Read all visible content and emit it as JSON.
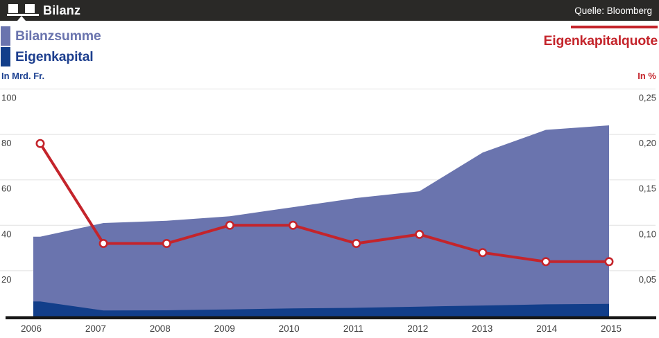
{
  "header": {
    "title": "Bilanz",
    "source": "Quelle: Bloomberg"
  },
  "legend": {
    "area_series": [
      {
        "label": "Bilanzsumme",
        "color": "#6a74ae"
      },
      {
        "label": "Eigenkapital",
        "color": "#123e8a"
      }
    ],
    "line_series": {
      "label": "Eigenkapitalquote",
      "color": "#c4242b"
    }
  },
  "axes": {
    "left_unit": "In Mrd. Fr.",
    "right_unit": "In %"
  },
  "colors": {
    "header_bg": "#2a2927",
    "grid": "#e0e0e0",
    "axis_line": "#161616",
    "tick_text": "#3f3f3f",
    "marker_fill": "#ffffff"
  },
  "chart_data": {
    "type": "area",
    "title": "Bilanz",
    "source": "Quelle: Bloomberg",
    "categories": [
      "2006",
      "2007",
      "2008",
      "2009",
      "2010",
      "2011",
      "2012",
      "2013",
      "2014",
      "2015"
    ],
    "series": [
      {
        "name": "Bilanzsumme",
        "type": "area",
        "axis": "left",
        "unit": "Mrd. Fr.",
        "color": "#6a74ae",
        "values": [
          35,
          41,
          42,
          44,
          48,
          52,
          55,
          72,
          82,
          84
        ]
      },
      {
        "name": "Eigenkapital",
        "type": "area",
        "axis": "left",
        "unit": "Mrd. Fr.",
        "color": "#123e8a",
        "values": [
          6.5,
          2.5,
          2.6,
          3.0,
          3.4,
          3.7,
          4.2,
          4.7,
          5.2,
          5.4
        ]
      },
      {
        "name": "Eigenkapitalquote",
        "type": "line",
        "axis": "right",
        "unit": "%",
        "color": "#c4242b",
        "values": [
          0.19,
          0.08,
          0.08,
          0.1,
          0.1,
          0.08,
          0.09,
          0.07,
          0.06,
          0.06
        ]
      }
    ],
    "left_axis": {
      "label": "In Mrd. Fr.",
      "range": [
        0,
        100
      ],
      "ticks": [
        {
          "value": 100,
          "label": "100"
        },
        {
          "value": 80,
          "label": "80"
        },
        {
          "value": 60,
          "label": "60"
        },
        {
          "value": 40,
          "label": "40"
        },
        {
          "value": 20,
          "label": "20"
        }
      ]
    },
    "right_axis": {
      "label": "In %",
      "range": [
        0,
        0.25
      ],
      "ticks": [
        {
          "value": 0.25,
          "label": "0,25"
        },
        {
          "value": 0.2,
          "label": "0,20"
        },
        {
          "value": 0.15,
          "label": "0,15"
        },
        {
          "value": 0.1,
          "label": "0,10"
        },
        {
          "value": 0.05,
          "label": "0,05"
        }
      ]
    },
    "grid": "horizontal",
    "legend_position": "top",
    "marker": "open-circle"
  }
}
